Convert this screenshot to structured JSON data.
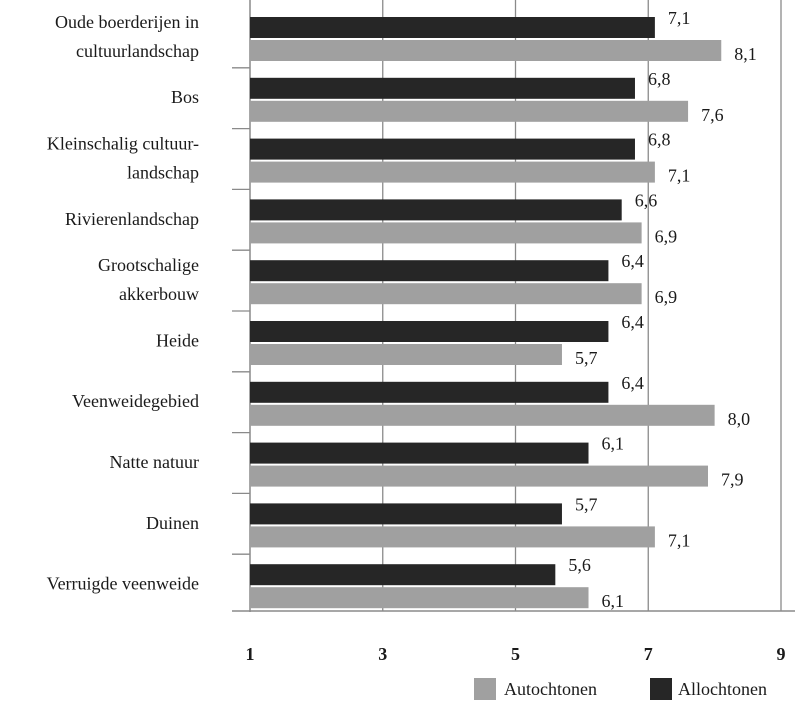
{
  "chart_data": {
    "type": "bar",
    "orientation": "horizontal",
    "categories": [
      [
        "Oude boerderijen in",
        "cultuurlandschap"
      ],
      [
        "Bos"
      ],
      [
        "Kleinschalig cultuur-",
        "landschap"
      ],
      [
        "Rivierenlandschap"
      ],
      [
        "Grootschalige",
        "akkerbouw"
      ],
      [
        "Heide"
      ],
      [
        "Veenweidegebied"
      ],
      [
        "Natte natuur"
      ],
      [
        "Duinen"
      ],
      [
        "Verruigde veenweide"
      ]
    ],
    "series": [
      {
        "name": "Allochtonen",
        "color": "#262626",
        "values": [
          7.1,
          6.8,
          6.8,
          6.6,
          6.4,
          6.4,
          6.4,
          6.1,
          5.7,
          5.6
        ],
        "labels": [
          "7,1",
          "6,8",
          "6,8",
          "6,6",
          "6,4",
          "6,4",
          "6,4",
          "6,1",
          "5,7",
          "5,6"
        ]
      },
      {
        "name": "Autochtonen",
        "color": "#a0a0a0",
        "values": [
          8.1,
          7.6,
          7.1,
          6.9,
          6.9,
          5.7,
          8.0,
          7.9,
          7.1,
          6.1
        ],
        "labels": [
          "8,1",
          "7,6",
          "7,1",
          "6,9",
          "6,9",
          "5,7",
          "8,0",
          "7,9",
          "7,1",
          "6,1"
        ]
      }
    ],
    "xlim": [
      1,
      9
    ],
    "xticks": [
      1,
      3,
      5,
      7,
      9
    ],
    "xtick_labels": [
      "1",
      "3",
      "5",
      "7",
      "9"
    ],
    "grid": true,
    "legend": {
      "placement": "bottom-right",
      "entries": [
        {
          "name": "Autochtonen",
          "color": "#a0a0a0"
        },
        {
          "name": "Allochtonen",
          "color": "#262626"
        }
      ]
    }
  }
}
